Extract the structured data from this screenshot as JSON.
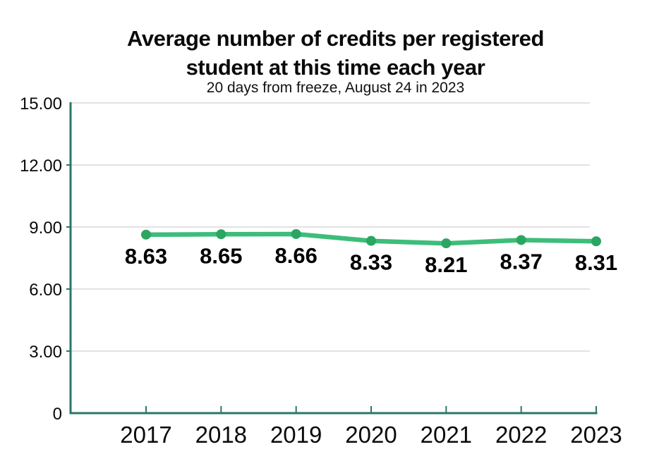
{
  "header": {
    "title_line1": "Average number of credits per registered",
    "title_line2": "student at this time each year",
    "subtitle": "20 days from freeze, August 24 in 2023"
  },
  "colors": {
    "line": "#3ebd7a",
    "marker": "#2ba562",
    "axis": "#2a7767",
    "gridline": "#d9d9d9",
    "label_text": "#000000"
  },
  "chart_data": {
    "type": "line",
    "title": "Average number of credits per registered student at this time each year",
    "subtitle": "20 days from freeze, August 24 in 2023",
    "categories": [
      "2017",
      "2018",
      "2019",
      "2020",
      "2021",
      "2022",
      "2023"
    ],
    "series": [
      {
        "name": "average-credits",
        "values": [
          8.63,
          8.65,
          8.66,
          8.33,
          8.21,
          8.37,
          8.31
        ]
      }
    ],
    "data_labels": [
      "8.63",
      "8.65",
      "8.66",
      "8.33",
      "8.21",
      "8.37",
      "8.31"
    ],
    "y_ticks": [
      {
        "label": "15.00",
        "value": 15
      },
      {
        "label": "12.00",
        "value": 12
      },
      {
        "label": "9.00",
        "value": 9
      },
      {
        "label": "6.00",
        "value": 6
      },
      {
        "label": "3.00",
        "value": 3
      },
      {
        "label": "0",
        "value": 0
      }
    ],
    "ylim": [
      0,
      15
    ],
    "xlabel": "",
    "ylabel": "",
    "grid": true,
    "legend": false,
    "markers": true
  }
}
